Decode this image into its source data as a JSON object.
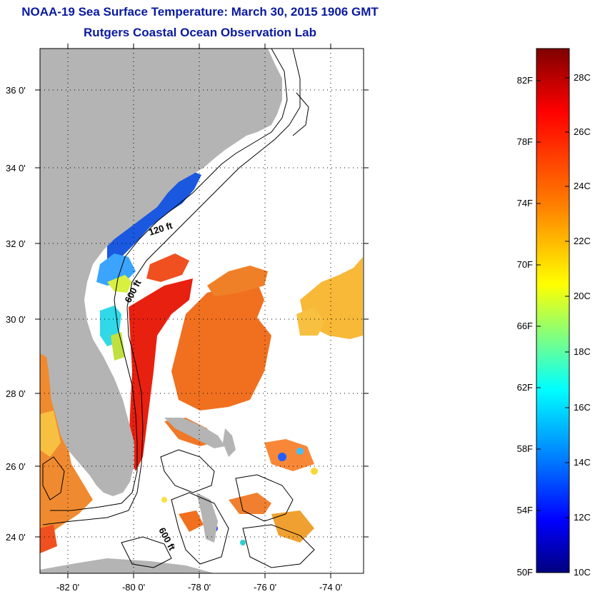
{
  "title": "NOAA-19 Sea Surface Temperature:  March 30, 2015 1906 GMT",
  "subtitle": "Rutgers Coastal Ocean Observation Lab",
  "lat_labels": [
    "36 0'",
    "34 0'",
    "32 0'",
    "30 0'",
    "28 0'",
    "26 0'",
    "24 0'"
  ],
  "lon_labels": [
    "-82 0'",
    "-80 0'",
    "-78 0'",
    "-76 0'",
    "-74 0'"
  ],
  "contour_labels": [
    "120 ft",
    "600 ft",
    "600 ft"
  ],
  "colorbar": {
    "fahrenheit": [
      "82F",
      "78F",
      "74F",
      "70F",
      "66F",
      "62F",
      "58F",
      "54F",
      "50F"
    ],
    "celsius": [
      "28C",
      "26C",
      "24C",
      "22C",
      "20C",
      "18C",
      "16C",
      "14C",
      "12C",
      "10C"
    ],
    "colors": [
      "#7f0000",
      "#ff0000",
      "#ff8000",
      "#ffff00",
      "#80ff80",
      "#00ffff",
      "#0080ff",
      "#0000ff",
      "#00007f"
    ]
  },
  "colors": {
    "land": "#b4b4b4",
    "title": "#0a1aa0"
  }
}
